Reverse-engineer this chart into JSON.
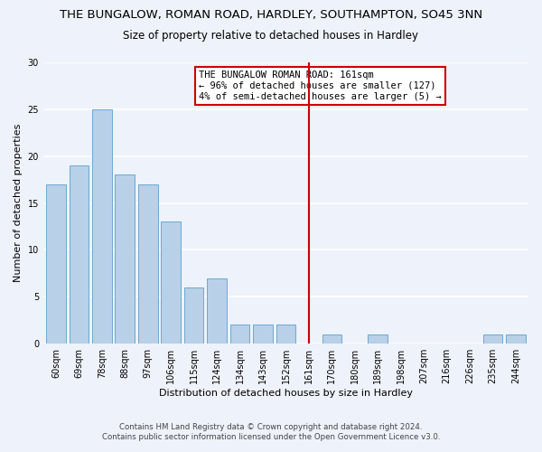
{
  "title": "THE BUNGALOW, ROMAN ROAD, HARDLEY, SOUTHAMPTON, SO45 3NN",
  "subtitle": "Size of property relative to detached houses in Hardley",
  "xlabel": "Distribution of detached houses by size in Hardley",
  "ylabel": "Number of detached properties",
  "bar_labels": [
    "60sqm",
    "69sqm",
    "78sqm",
    "88sqm",
    "97sqm",
    "106sqm",
    "115sqm",
    "124sqm",
    "134sqm",
    "143sqm",
    "152sqm",
    "161sqm",
    "170sqm",
    "180sqm",
    "189sqm",
    "198sqm",
    "207sqm",
    "216sqm",
    "226sqm",
    "235sqm",
    "244sqm"
  ],
  "bar_values": [
    17,
    19,
    25,
    18,
    17,
    13,
    6,
    7,
    2,
    2,
    2,
    0,
    1,
    0,
    1,
    0,
    0,
    0,
    0,
    1,
    1
  ],
  "bar_color": "#b8d0e8",
  "bar_edge_color": "#6aaad4",
  "reference_line_x_label": "161sqm",
  "reference_line_color": "#cc0000",
  "ylim": [
    0,
    30
  ],
  "yticks": [
    0,
    5,
    10,
    15,
    20,
    25,
    30
  ],
  "annotation_title": "THE BUNGALOW ROMAN ROAD: 161sqm",
  "annotation_line1": "← 96% of detached houses are smaller (127)",
  "annotation_line2": "4% of semi-detached houses are larger (5) →",
  "annotation_box_edge_color": "#cc0000",
  "footer_line1": "Contains HM Land Registry data © Crown copyright and database right 2024.",
  "footer_line2": "Contains public sector information licensed under the Open Government Licence v3.0.",
  "bg_color": "#eef2fa",
  "grid_color": "#ffffff",
  "title_fontsize": 9.5,
  "subtitle_fontsize": 8.5,
  "label_fontsize": 8.0,
  "tick_fontsize": 7.0,
  "annotation_fontsize": 7.5,
  "footer_fontsize": 6.2
}
